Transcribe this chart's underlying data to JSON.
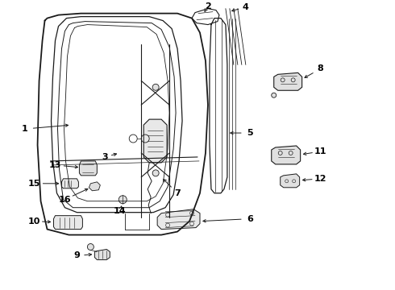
{
  "background_color": "#ffffff",
  "line_color": "#1a1a1a",
  "label_color": "#000000",
  "fig_w": 4.9,
  "fig_h": 3.6,
  "dpi": 100
}
